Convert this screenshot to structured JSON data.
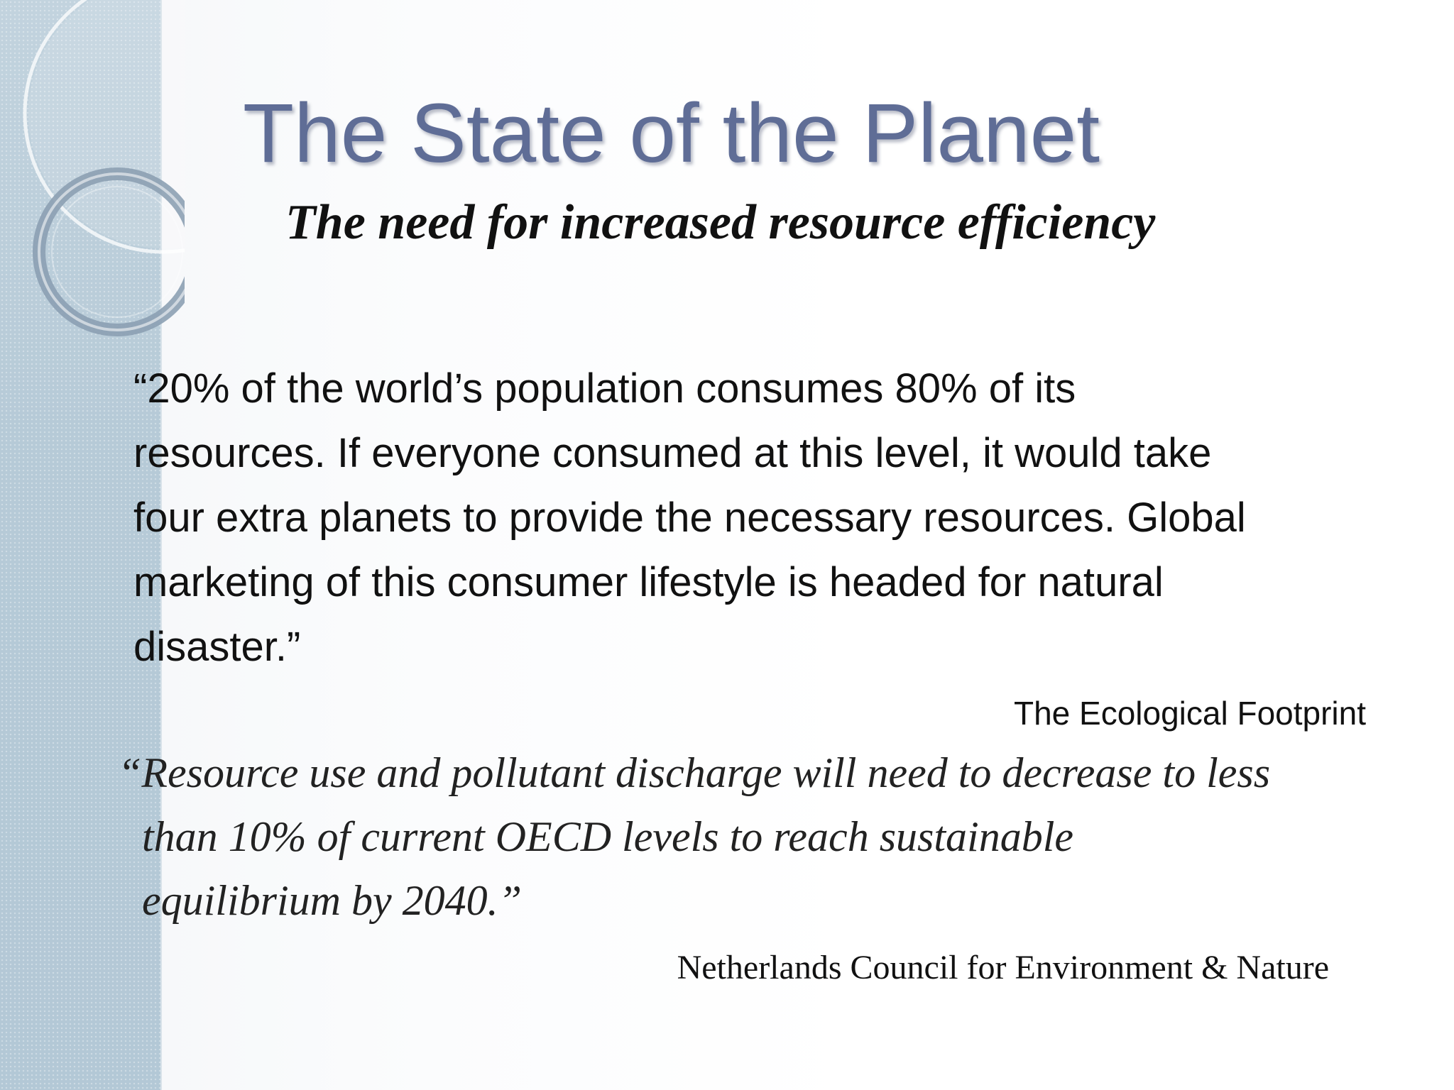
{
  "slide": {
    "title": "The State of the Planet",
    "subtitle": "The need for increased resource efficiency",
    "quote1": {
      "lines": [
        "“20% of the world’s population consumes 80% of its",
        "resources.  If everyone consumed at this level, it would take",
        "four extra planets to provide the necessary resources.  Global",
        "marketing of this consumer lifestyle is headed for natural",
        "disaster.”"
      ],
      "attribution": "The Ecological Footprint"
    },
    "quote2": {
      "lines": [
        "“Resource use and pollutant discharge will need to decrease to less",
        "than 10% of current OECD levels to reach sustainable",
        "equilibrium by 2040.”"
      ],
      "attribution": "Netherlands Council for Environment & Nature"
    }
  },
  "colors": {
    "title": "#5f6d96",
    "side_band": "#b9ccd8",
    "text": "#111111"
  }
}
